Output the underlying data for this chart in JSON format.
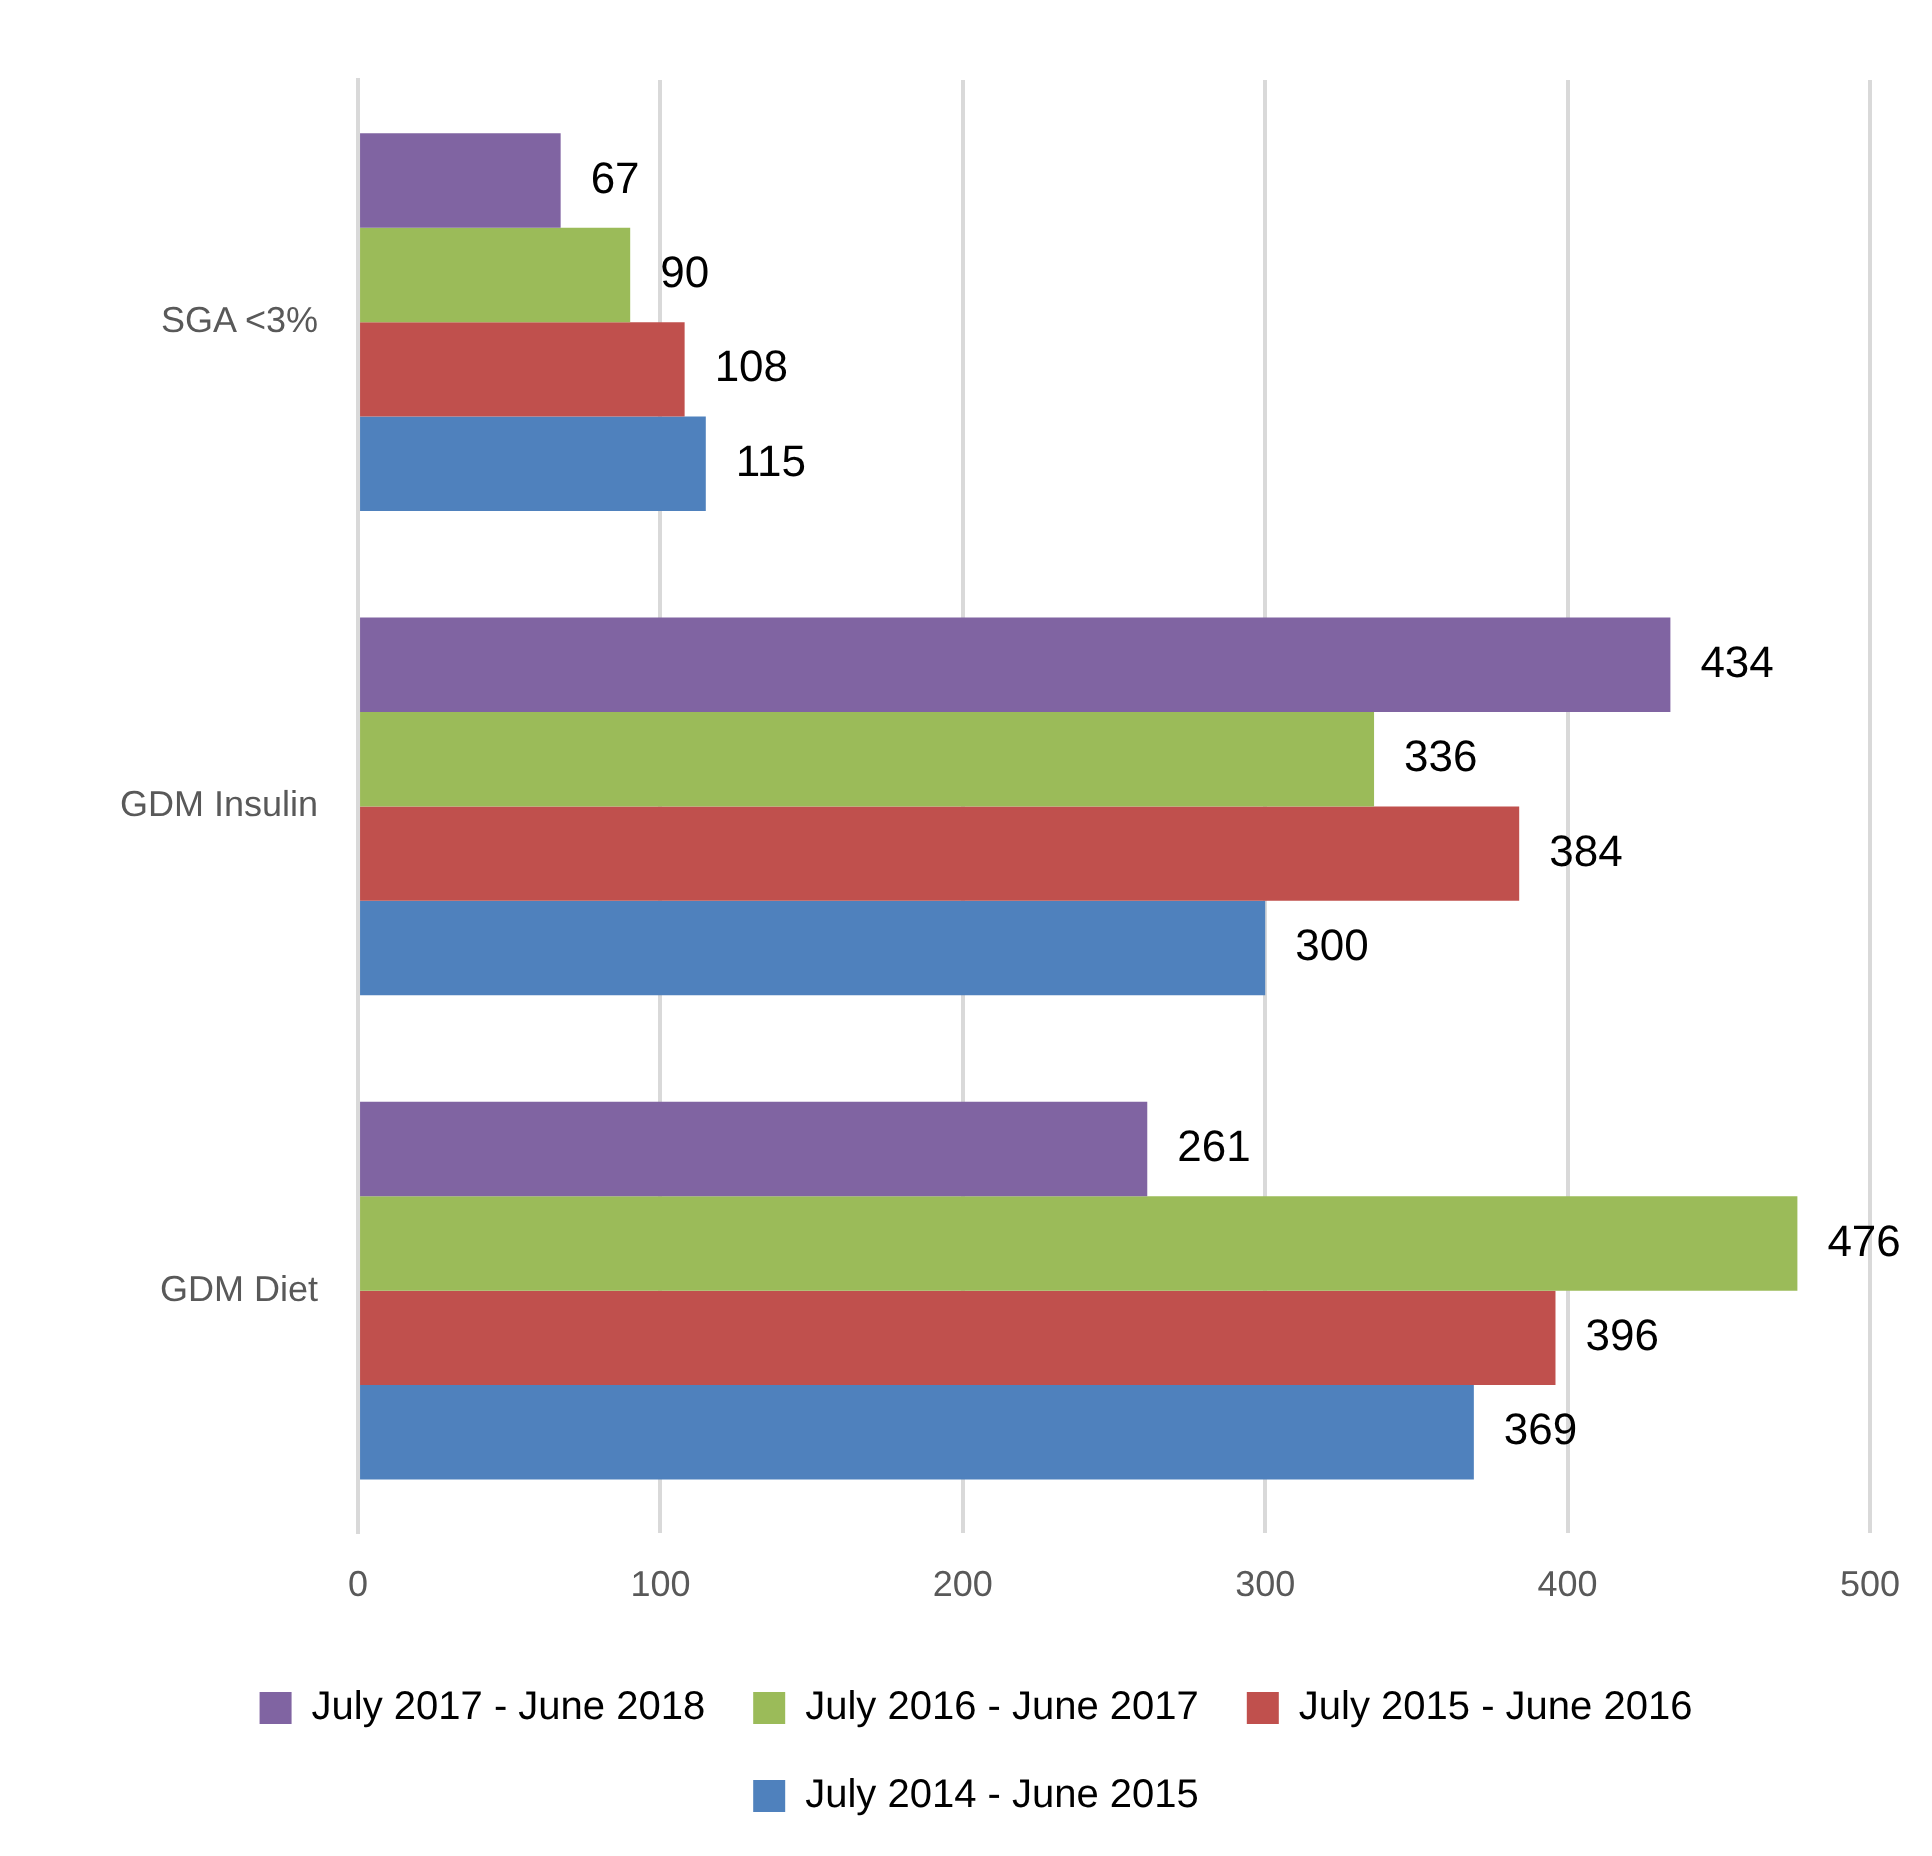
{
  "chart_data": {
    "type": "bar",
    "orientation": "horizontal",
    "categories": [
      "SGA <3%",
      "GDM Insulin",
      "GDM Diet"
    ],
    "series": [
      {
        "name": "July 2017 - June 2018",
        "color": "#8064a2",
        "values": [
          67,
          434,
          261
        ]
      },
      {
        "name": "July 2016 - June 2017",
        "color": "#9bbb59",
        "values": [
          90,
          336,
          476
        ]
      },
      {
        "name": "July 2015 - June 2016",
        "color": "#c0504d",
        "values": [
          108,
          384,
          396
        ]
      },
      {
        "name": "July 2014 - June 2015",
        "color": "#4f81bd",
        "values": [
          115,
          300,
          369
        ]
      }
    ],
    "xlim": [
      0,
      500
    ],
    "xticks": [
      0,
      100,
      200,
      300,
      400,
      500
    ],
    "grid": "x",
    "legend": "bottom",
    "data_labels": true
  }
}
